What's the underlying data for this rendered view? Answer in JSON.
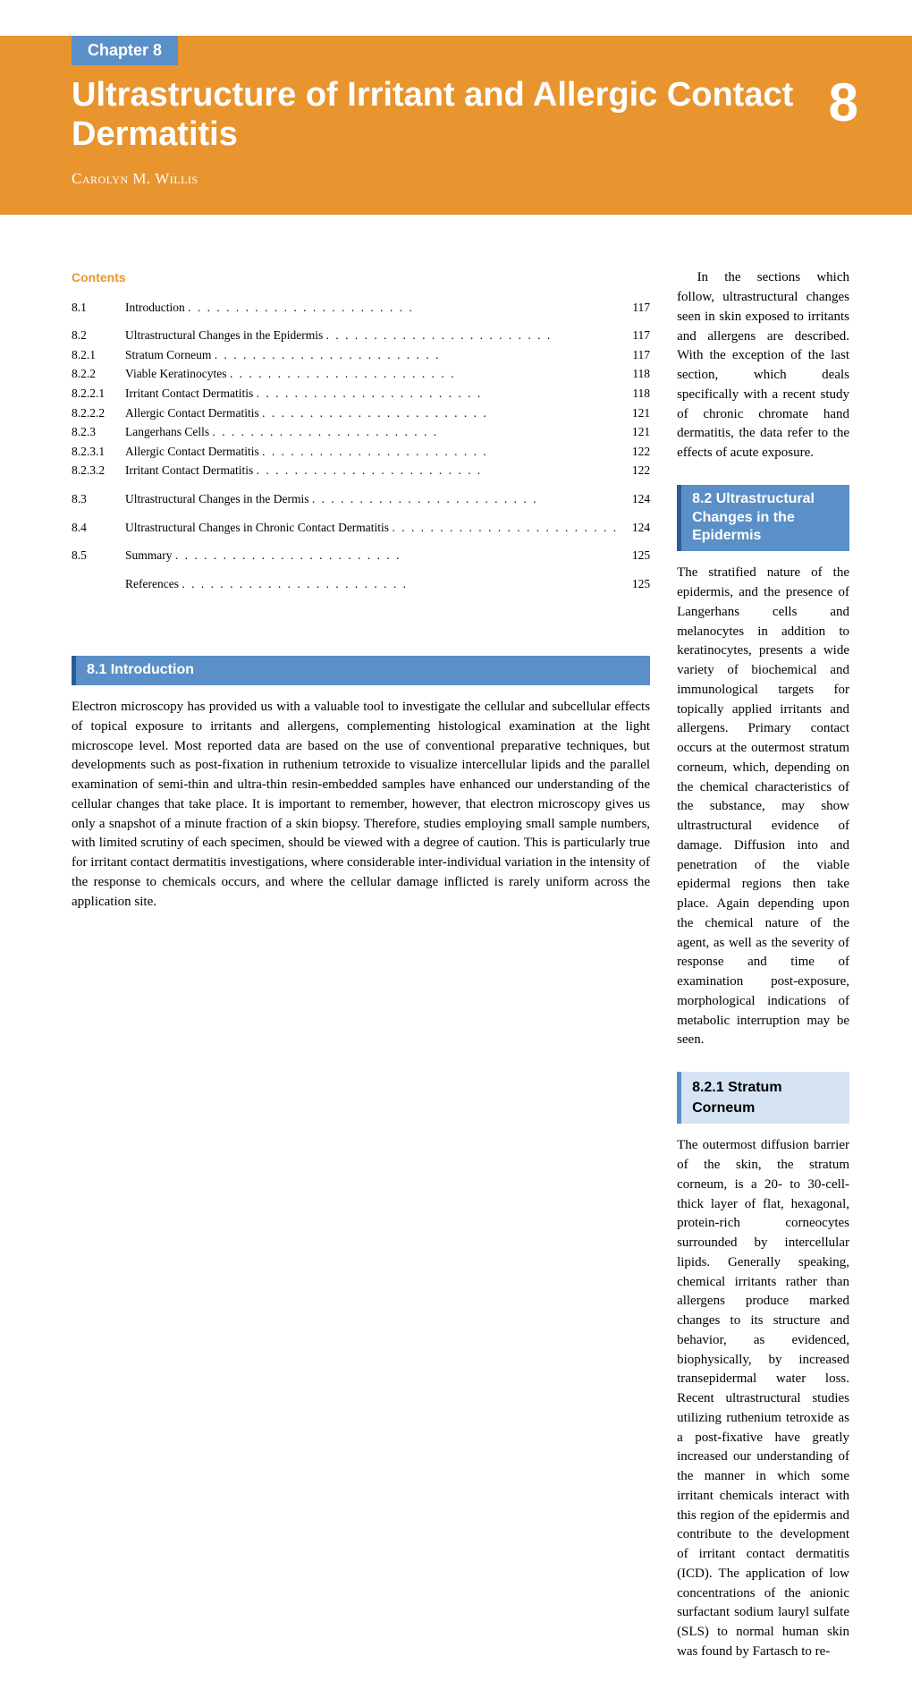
{
  "colors": {
    "header_bg": "#e89530",
    "chapter_tag_bg": "#5b8fc7",
    "chapter_tag_fg": "#ffffff",
    "title_fg": "#ffffff",
    "contents_heading": "#e89530",
    "section_heading_bg": "#5b8fc7",
    "section_heading_border": "#2c5a99",
    "section_heading_fg": "#ffffff",
    "subsection_bg": "#d6e3f3",
    "subsection_border": "#5b8fc7",
    "body_fg": "#000000"
  },
  "typography": {
    "body_font": "Georgia, serif",
    "heading_font": "Helvetica Neue, Arial, sans-serif",
    "body_fontsize": 15,
    "title_fontsize": 38,
    "chapter_number_fontsize": 60,
    "toc_fontsize": 13.5
  },
  "header": {
    "chapter_tag": "Chapter 8",
    "title": "Ultrastructure of Irritant and Allergic Contact Dermatitis",
    "chapter_number": "8",
    "author": "Carolyn M. Willis"
  },
  "contents": {
    "heading": "Contents",
    "groups": [
      [
        {
          "num": "8.1",
          "label": "Introduction",
          "page": "117"
        }
      ],
      [
        {
          "num": "8.2",
          "label": "Ultrastructural Changes in the Epidermis",
          "page": "117"
        },
        {
          "num": "8.2.1",
          "label": "Stratum Corneum",
          "page": "117"
        },
        {
          "num": "8.2.2",
          "label": "Viable Keratinocytes",
          "page": "118"
        },
        {
          "num": "8.2.2.1",
          "label": "Irritant Contact Dermatitis",
          "page": "118"
        },
        {
          "num": "8.2.2.2",
          "label": "Allergic Contact Dermatitis",
          "page": "121"
        },
        {
          "num": "8.2.3",
          "label": "Langerhans Cells",
          "page": "121"
        },
        {
          "num": "8.2.3.1",
          "label": "Allergic Contact Dermatitis",
          "page": "122"
        },
        {
          "num": "8.2.3.2",
          "label": "Irritant Contact Dermatitis",
          "page": "122"
        }
      ],
      [
        {
          "num": "8.3",
          "label": "Ultrastructural Changes in the Dermis",
          "page": "124"
        }
      ],
      [
        {
          "num": "8.4",
          "label": "Ultrastructural Changes in Chronic Contact Dermatitis",
          "page": "124"
        }
      ],
      [
        {
          "num": "8.5",
          "label": "Summary",
          "page": "125"
        }
      ],
      [
        {
          "num": "",
          "label": "References",
          "page": "125"
        }
      ]
    ]
  },
  "sections": {
    "s81_heading": "8.1  Introduction",
    "s81_p1": "Electron microscopy has provided us with a valuable tool to investigate the cellular and subcellular effects of topical exposure to irritants and allergens, complementing histological examination at the light microscope level. Most reported data are based on the use of conventional preparative techniques, but developments such as post-fixation in ruthenium tetroxide to visualize intercellular lipids and the parallel examination of semi-thin and ultra-thin resin-embedded samples have enhanced our understanding of the cellular changes that take place. It is important to remember, however, that electron microscopy gives us only a snapshot of a minute fraction of a skin biopsy. Therefore, studies employing small sample numbers, with limited scrutiny of each specimen, should be viewed with a degree of caution. This is particularly true for irritant contact dermatitis investigations, where considerable inter-individual variation in the intensity of the response to chemicals occurs, and where the cellular damage inflicted is rarely uniform across the application site.",
    "s81_p2": "In the sections which follow, ultrastructural changes seen in skin exposed to irritants and allergens are described. With the exception of the last section, which deals specifically with a recent study of chronic chromate hand dermatitis, the data refer to the effects of acute exposure.",
    "s82_heading": "8.2  Ultrastructural Changes in the Epidermis",
    "s82_p1": "The stratified nature of the epidermis, and the presence of Langerhans cells and melanocytes in addition to keratinocytes, presents a wide variety of biochemical and immunological targets for topically applied irritants and allergens. Primary contact occurs at the outermost stratum corneum, which, depending on the chemical characteristics of the substance, may show ultrastructural evidence of damage. Diffusion into and penetration of the viable epidermal regions then take place. Again depending upon the chemical nature of the agent, as well as the severity of response and time of examination post-exposure, morphological indications of metabolic interruption may be seen.",
    "s821_heading": "8.2.1  Stratum Corneum",
    "s821_p1": "The outermost diffusion barrier of the skin, the stratum corneum, is a 20- to 30-cell-thick layer of flat, hexagonal, protein-rich corneocytes surrounded by intercellular lipids. Generally speaking, chemical irritants rather than allergens produce marked changes to its structure and behavior, as evidenced, biophysically, by increased transepidermal water loss. Recent ultrastructural studies utilizing ruthenium tetroxide as a post-fixative have greatly increased our understanding of the manner in which some irritant chemicals interact with this region of the epidermis and contribute to the development of irritant contact dermatitis (ICD). The application of low concentrations of the anionic surfactant sodium lauryl sulfate (SLS) to normal human skin was found by Fartasch to re-"
  }
}
